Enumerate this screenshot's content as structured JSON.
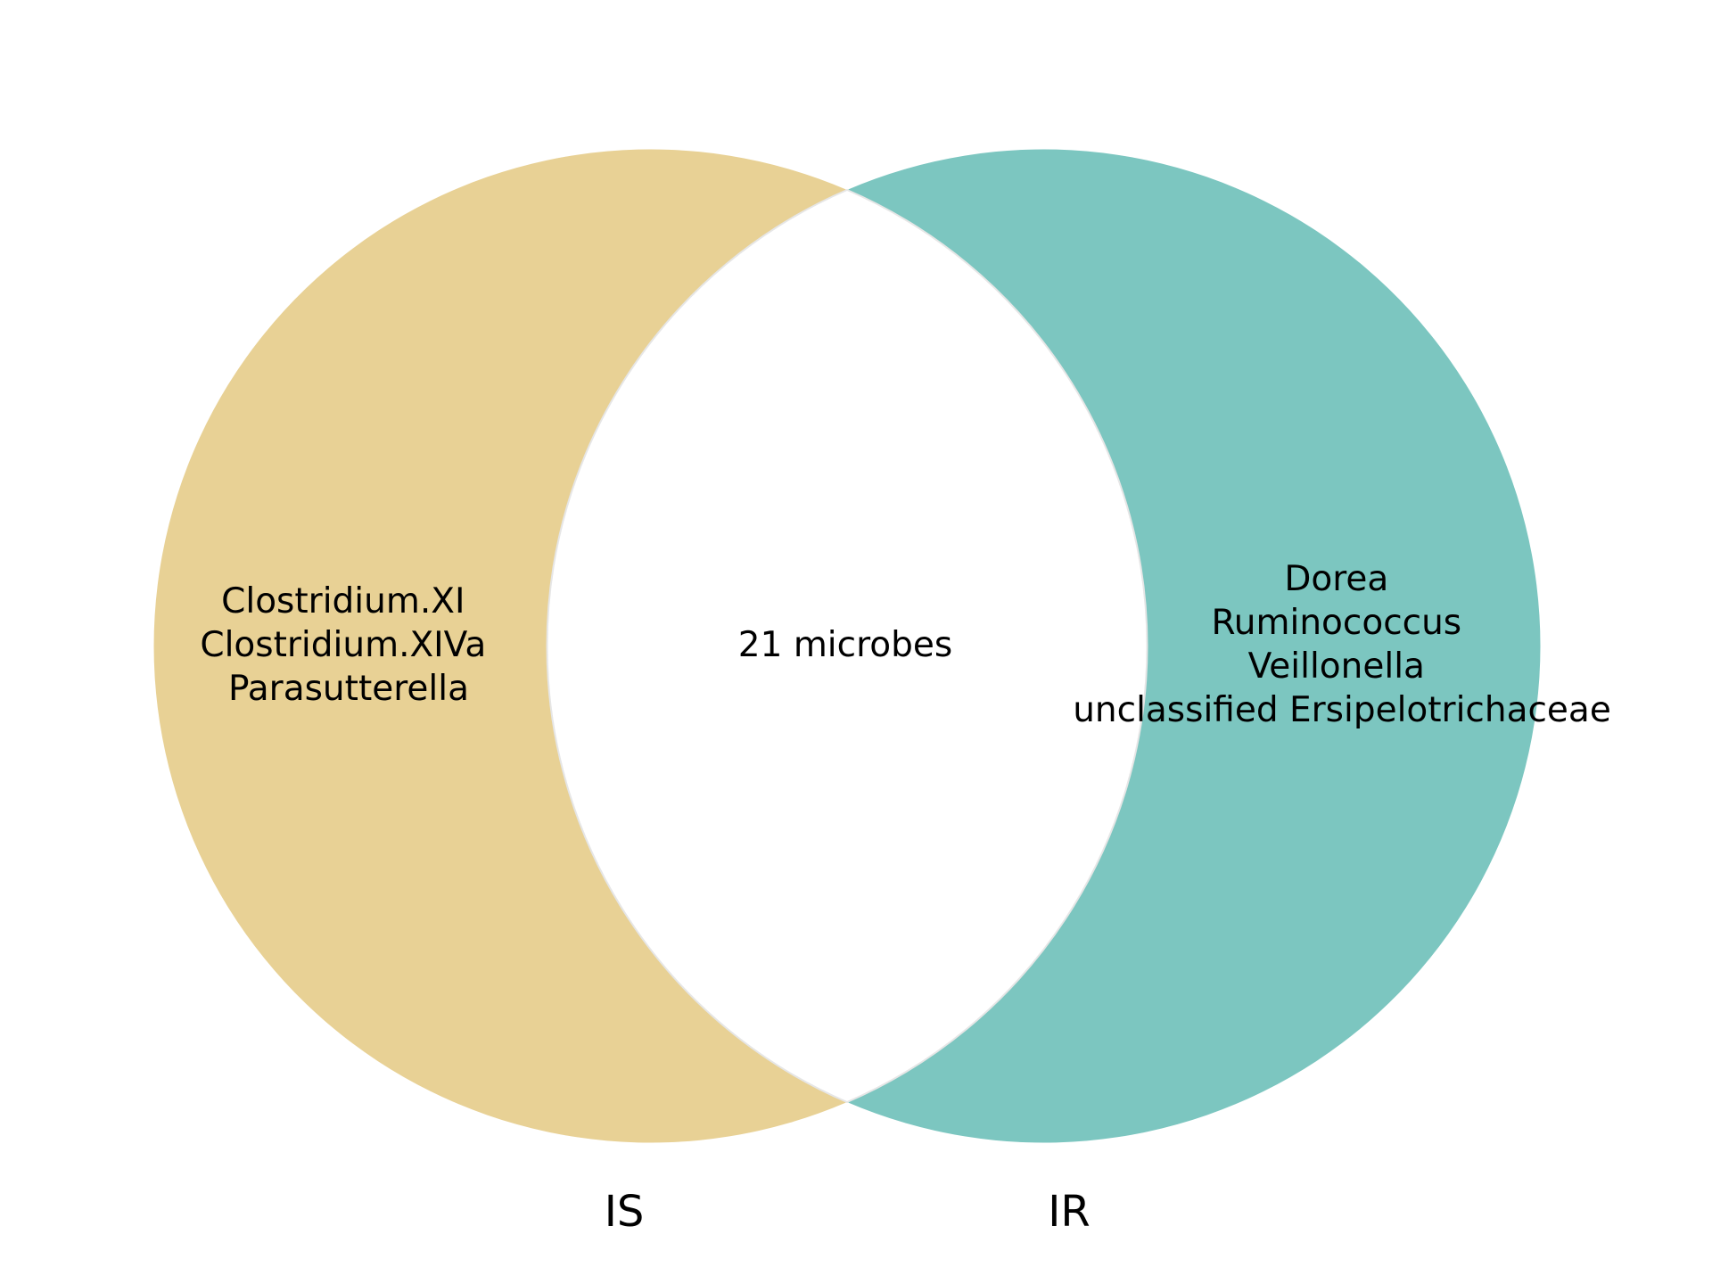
{
  "venn": {
    "sets": [
      {
        "label": "IS",
        "color": "#e8d195"
      },
      {
        "label": "IR",
        "color": "#7cc6c0"
      }
    ],
    "intersection_fill": "#ffffff",
    "regions": {
      "left_only": [
        "Clostridium.XI",
        "Clostridium.XIVa",
        "Parasutterella"
      ],
      "both": [
        "21 microbes"
      ],
      "right_only": [
        "Dorea",
        "Ruminococcus",
        "Veillonella",
        "unclassified Ersipelotrichaceae"
      ]
    }
  }
}
